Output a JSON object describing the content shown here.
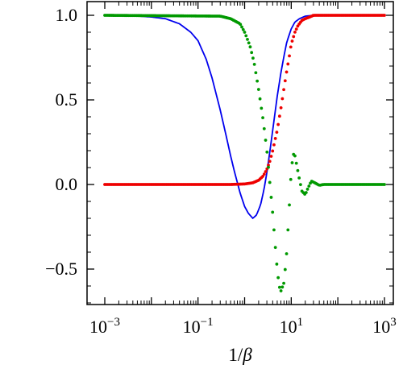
{
  "chart_data": {
    "type": "scatter",
    "title": "",
    "xlabel_prefix": "1/",
    "xlabel_symbol": "β",
    "ylabel": "",
    "xscale": "log",
    "xlim": [
      0.001,
      1000
    ],
    "ylim": [
      -0.72,
      1.08
    ],
    "grid": false,
    "legend": "none",
    "x_ticks": [
      {
        "value": 0.001,
        "base": "10",
        "exp": "−3"
      },
      {
        "value": 0.1,
        "base": "10",
        "exp": "−1"
      },
      {
        "value": 10,
        "base": "10",
        "exp": "1"
      },
      {
        "value": 1000,
        "base": "10",
        "exp": "3"
      }
    ],
    "y_ticks": [
      {
        "value": -0.5,
        "label": "−0.5"
      },
      {
        "value": 0.0,
        "label": "0.0"
      },
      {
        "value": 0.5,
        "label": "0.5"
      },
      {
        "value": 1.0,
        "label": "1.0"
      }
    ],
    "series": [
      {
        "style": "line",
        "color": "#0000ee",
        "x": [
          0.001,
          0.003,
          0.01,
          0.02,
          0.04,
          0.07,
          0.1,
          0.15,
          0.2,
          0.3,
          0.4,
          0.5,
          0.6,
          0.8,
          1.0,
          1.2,
          1.5,
          1.8,
          2.2,
          2.6,
          3.0,
          3.5,
          4.0,
          5.0,
          6.0,
          7.0,
          8.0,
          10,
          12,
          15,
          20,
          30,
          50,
          100,
          1000
        ],
        "y": [
          1.0,
          1.0,
          0.99,
          0.98,
          0.95,
          0.9,
          0.85,
          0.74,
          0.63,
          0.44,
          0.29,
          0.17,
          0.08,
          -0.05,
          -0.13,
          -0.17,
          -0.2,
          -0.18,
          -0.12,
          -0.03,
          0.07,
          0.2,
          0.32,
          0.52,
          0.66,
          0.76,
          0.84,
          0.92,
          0.96,
          0.98,
          0.995,
          1.0,
          1.0,
          1.0,
          1.0
        ]
      },
      {
        "style": "points",
        "color": "#ee0000",
        "x": [
          0.001,
          0.5,
          1.0,
          1.5,
          2.0,
          2.5,
          3.0,
          3.5,
          4.0,
          5.0,
          6.0,
          7.0,
          8.0,
          9.0,
          10,
          12,
          14,
          17,
          20,
          25,
          30,
          40,
          50,
          1000
        ],
        "y": [
          0.0,
          0.0,
          0.003,
          0.01,
          0.025,
          0.05,
          0.09,
          0.14,
          0.2,
          0.32,
          0.45,
          0.57,
          0.67,
          0.75,
          0.83,
          0.9,
          0.94,
          0.97,
          0.98,
          0.99,
          1.0,
          1.0,
          1.0,
          1.0
        ]
      },
      {
        "style": "points",
        "color": "#009900",
        "x": [
          0.001,
          0.3,
          0.5,
          0.8,
          1.0,
          1.3,
          1.6,
          2.0,
          2.5,
          3.0,
          3.5,
          4.0,
          4.5,
          5.0,
          5.5,
          6.0,
          7.0,
          8.0,
          9.0,
          10,
          11,
          12,
          13,
          15,
          17,
          20,
          23,
          27,
          32,
          40,
          50,
          70,
          100,
          200,
          1000
        ],
        "y": [
          1.0,
          0.995,
          0.98,
          0.95,
          0.9,
          0.82,
          0.72,
          0.56,
          0.38,
          0.2,
          0.0,
          -0.17,
          -0.35,
          -0.5,
          -0.6,
          -0.63,
          -0.58,
          -0.4,
          -0.15,
          0.08,
          0.18,
          0.17,
          0.12,
          0.03,
          -0.04,
          -0.06,
          -0.02,
          0.02,
          0.01,
          -0.005,
          0.0,
          0.0,
          0.0,
          0.0,
          0.0
        ]
      }
    ]
  }
}
